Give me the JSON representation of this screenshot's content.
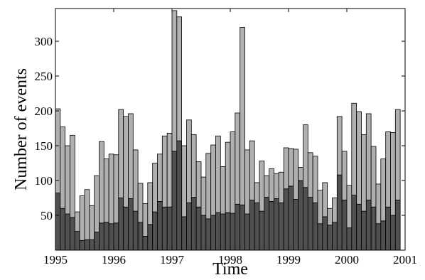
{
  "chart_data": {
    "type": "stacked-bar",
    "xlabel": "Time",
    "ylabel": "Number of events",
    "xlim": [
      1995,
      2001
    ],
    "xticks": [
      1995,
      1996,
      1997,
      1998,
      1999,
      2000,
      2001
    ],
    "ylim": [
      0,
      347
    ],
    "yticks": [
      50,
      100,
      150,
      200,
      250,
      300
    ],
    "x": [
      1995,
      1995.083,
      1995.167,
      1995.25,
      1995.333,
      1995.417,
      1995.5,
      1995.583,
      1995.667,
      1995.75,
      1995.833,
      1995.917,
      1996,
      1996.083,
      1996.167,
      1996.25,
      1996.333,
      1996.417,
      1996.5,
      1996.583,
      1996.667,
      1996.75,
      1996.833,
      1996.917,
      1997,
      1997.083,
      1997.167,
      1997.25,
      1997.333,
      1997.417,
      1997.5,
      1997.583,
      1997.667,
      1997.75,
      1997.833,
      1997.917,
      1998,
      1998.083,
      1998.167,
      1998.25,
      1998.333,
      1998.417,
      1998.5,
      1998.583,
      1998.667,
      1998.75,
      1998.833,
      1998.917,
      1999,
      1999.083,
      1999.167,
      1999.25,
      1999.333,
      1999.417,
      1999.5,
      1999.583,
      1999.667,
      1999.75,
      1999.833,
      1999.917,
      2000,
      2000.083,
      2000.167,
      2000.25,
      2000.333,
      2000.417,
      2000.5,
      2000.583,
      2000.667,
      2000.75,
      2000.833
    ],
    "series": [
      {
        "color": "#505050",
        "values": [
          82,
          60,
          52,
          47,
          27,
          14,
          15,
          15,
          26,
          39,
          40,
          38,
          39,
          75,
          62,
          74,
          56,
          40,
          20,
          37,
          55,
          70,
          62,
          62,
          142,
          157,
          48,
          68,
          76,
          62,
          50,
          45,
          50,
          54,
          52,
          54,
          53,
          66,
          65,
          52,
          72,
          68,
          56,
          76,
          70,
          74,
          68,
          88,
          92,
          73,
          100,
          90,
          76,
          68,
          38,
          48,
          36,
          40,
          108,
          72,
          32,
          79,
          66,
          56,
          72,
          62,
          38,
          42,
          62,
          50,
          72
        ]
      },
      {
        "color": "#b0b0b0",
        "values": [
          121,
          117,
          98,
          118,
          28,
          64,
          72,
          49,
          81,
          117,
          91,
          100,
          98,
          127,
          130,
          122,
          88,
          56,
          47,
          60,
          70,
          68,
          102,
          106,
          202,
          178,
          102,
          119,
          90,
          65,
          55,
          94,
          101,
          110,
          68,
          101,
          117,
          131,
          255,
          92,
          85,
          29,
          72,
          31,
          47,
          36,
          44,
          59,
          54,
          72,
          19,
          90,
          64,
          67,
          48,
          49,
          24,
          35,
          84,
          70,
          61,
          132,
          133,
          110,
          124,
          87,
          57,
          89,
          108,
          119,
          130
        ]
      }
    ]
  }
}
